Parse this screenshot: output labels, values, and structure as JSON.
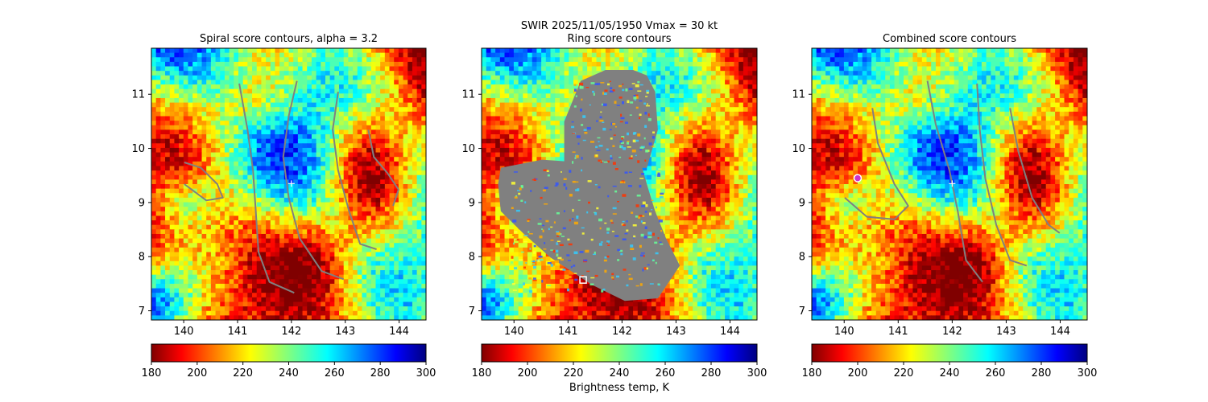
{
  "figure": {
    "suptitle": "SWIR  2025/11/05/1950    Vmax = 30 kt"
  },
  "chart_data": [
    {
      "type": "heatmap",
      "title": "Spiral score contours, alpha =  3.2",
      "xlim": [
        139.4,
        144.5
      ],
      "ylim": [
        6.83,
        11.85
      ],
      "xticks": [
        "140",
        "141",
        "142",
        "143",
        "144"
      ],
      "yticks": [
        "7",
        "8",
        "9",
        "10",
        "11"
      ],
      "colorbar": {
        "range": [
          180,
          300
        ],
        "ticks": [
          "180",
          "200",
          "220",
          "240",
          "260",
          "280",
          "300"
        ],
        "colormap": "jet_r",
        "label": ""
      },
      "overlay": "spiral-contours",
      "markers": [
        {
          "kind": "plus",
          "x": 142.0,
          "y": 9.35,
          "color": "#ffffff"
        }
      ]
    },
    {
      "type": "heatmap",
      "title": "Ring score contours",
      "xlim": [
        139.4,
        144.5
      ],
      "ylim": [
        6.83,
        11.85
      ],
      "xticks": [
        "140",
        "141",
        "142",
        "143",
        "144"
      ],
      "yticks": [
        "7",
        "8",
        "9",
        "10",
        "11"
      ],
      "colorbar": {
        "range": [
          180,
          300
        ],
        "ticks": [
          "180",
          "200",
          "220",
          "240",
          "260",
          "280",
          "300"
        ],
        "colormap": "jet_r",
        "label": "Brightness temp, K"
      },
      "overlay": "ring-mask",
      "markers": [
        {
          "kind": "square",
          "x": 141.28,
          "y": 7.57,
          "color": "#ffffff"
        }
      ]
    },
    {
      "type": "heatmap",
      "title": "Combined score contours",
      "xlim": [
        139.4,
        144.5
      ],
      "ylim": [
        6.83,
        11.85
      ],
      "xticks": [
        "140",
        "141",
        "142",
        "143",
        "144"
      ],
      "yticks": [
        "7",
        "8",
        "9",
        "10",
        "11"
      ],
      "colorbar": {
        "range": [
          180,
          300
        ],
        "ticks": [
          "180",
          "200",
          "220",
          "240",
          "260",
          "280",
          "300"
        ],
        "colormap": "jet_r",
        "label": ""
      },
      "overlay": "combined-contours",
      "markers": [
        {
          "kind": "circle",
          "x": 140.25,
          "y": 9.45,
          "color": "#cc33cc"
        },
        {
          "kind": "plus",
          "x": 142.0,
          "y": 9.35,
          "color": "#ffffff"
        }
      ]
    }
  ]
}
